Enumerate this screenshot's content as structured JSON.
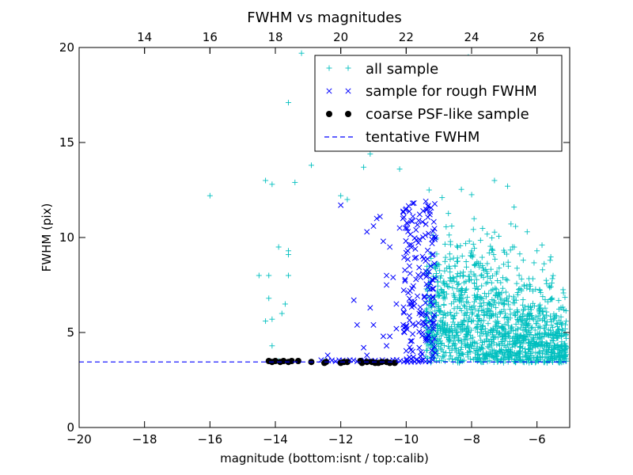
{
  "chart_data": {
    "type": "scatter",
    "title": "FWHM vs magnitudes",
    "xlabel": "magnitude (bottom:isnt / top:calib)",
    "ylabel": "FWHM (pix)",
    "xlim": [
      -20,
      -5
    ],
    "ylim": [
      0,
      20
    ],
    "x_ticks": [
      -20,
      -18,
      -16,
      -14,
      -12,
      -10,
      -8,
      -6
    ],
    "x_tick_labels": [
      "−20",
      "−18",
      "−16",
      "−14",
      "−12",
      "−10",
      "−8",
      "−6"
    ],
    "y_ticks": [
      0,
      5,
      10,
      15,
      20
    ],
    "y_tick_labels": [
      "0",
      "5",
      "10",
      "15",
      "20"
    ],
    "top_axis": {
      "ticks": [
        14,
        16,
        18,
        20,
        22,
        24,
        26
      ],
      "tick_labels": [
        "14",
        "16",
        "18",
        "20",
        "22",
        "24",
        "26"
      ],
      "offset": 32
    },
    "grid": false,
    "legend_position": "top-right",
    "series": [
      {
        "name": "all sample",
        "marker": "+",
        "color": "#00bfbf",
        "points": [
          [
            -16,
            12.2
          ],
          [
            -14.3,
            13
          ],
          [
            -14.1,
            12.8
          ],
          [
            -13.4,
            12.9
          ],
          [
            -12.9,
            13.8
          ],
          [
            -13.2,
            19.7
          ],
          [
            -13.6,
            17.1
          ],
          [
            -14.3,
            5.6
          ],
          [
            -14.5,
            8
          ],
          [
            -14.2,
            8
          ],
          [
            -14.2,
            6.8
          ],
          [
            -14.1,
            5.7
          ],
          [
            -13.9,
            9.5
          ],
          [
            -13.6,
            9.3
          ],
          [
            -13.6,
            9.1
          ],
          [
            -13.6,
            8.0
          ],
          [
            -13.7,
            6.5
          ],
          [
            -13.8,
            6.0
          ],
          [
            -14.1,
            4.3
          ],
          [
            -14.2,
            3.5
          ],
          [
            -13.9,
            3.5
          ],
          [
            -12.5,
            3.5
          ],
          [
            -12.0,
            12.2
          ],
          [
            -11.8,
            12.0
          ],
          [
            -11.5,
            15.0
          ],
          [
            -11.1,
            14.4
          ],
          [
            -11.3,
            13.7
          ],
          [
            -10.7,
            17.5
          ],
          [
            -10.4,
            16.5
          ],
          [
            -10.2,
            13.6
          ],
          [
            -9.4,
            16.3
          ],
          [
            -9.3,
            12.5
          ],
          [
            -9.1,
            18.0
          ],
          [
            -8.9,
            12.1
          ],
          [
            -8.6,
            15.7
          ],
          [
            -8.4,
            16.8
          ],
          [
            -8.1,
            19.5
          ],
          [
            -7.6,
            18.1
          ],
          [
            -7.3,
            13.0
          ],
          [
            -7.1,
            15.2
          ],
          [
            -6.9,
            12.7
          ],
          [
            -6.7,
            11.6
          ],
          [
            -6.3,
            10.3
          ],
          [
            -6.0,
            9.3
          ],
          [
            -5.6,
            8.8
          ],
          [
            -5.2,
            5.1
          ],
          [
            -5.1,
            4.2
          ],
          [
            -5.3,
            3.7
          ]
        ],
        "cloud": {
          "x_range": [
            -9.4,
            -5.1
          ],
          "peak_x": -7.9,
          "peak_fwhm": 5.5,
          "fwhm_floor": 3.4,
          "count": 1400
        }
      },
      {
        "name": "sample for rough FWHM",
        "marker": "x",
        "color": "#0000ff",
        "points": [
          [
            -12,
            11.7
          ],
          [
            -11.2,
            10.3
          ],
          [
            -11,
            10.6
          ],
          [
            -10.9,
            11.0
          ],
          [
            -10.8,
            11.1
          ],
          [
            -10.7,
            9.8
          ],
          [
            -10.6,
            7.5
          ],
          [
            -10.5,
            9.5
          ],
          [
            -10.6,
            8.0
          ],
          [
            -10.5,
            4.8
          ],
          [
            -10.4,
            7.9
          ],
          [
            -10.3,
            6.5
          ],
          [
            -10.2,
            10.5
          ],
          [
            -10.1,
            11.0
          ],
          [
            -10.0,
            11.5
          ],
          [
            -10.0,
            9.2
          ],
          [
            -9.9,
            8.5
          ],
          [
            -9.9,
            6.5
          ],
          [
            -9.8,
            11.8
          ],
          [
            -9.7,
            10.4
          ],
          [
            -9.7,
            7.8
          ],
          [
            -9.6,
            6.0
          ],
          [
            -9.5,
            5.0
          ],
          [
            -9.4,
            11.9
          ],
          [
            -9.4,
            10.7
          ],
          [
            -9.5,
            9.0
          ],
          [
            -9.3,
            8.2
          ],
          [
            -9.3,
            6.9
          ],
          [
            -9.2,
            5.5
          ],
          [
            -9.2,
            4.5
          ],
          [
            -11.6,
            6.7
          ],
          [
            -11.1,
            6.3
          ],
          [
            -11.0,
            5.4
          ],
          [
            -10.7,
            4.8
          ],
          [
            -10.6,
            4.3
          ],
          [
            -11.5,
            5.4
          ],
          [
            -10.3,
            5.2
          ],
          [
            -10.0,
            5.3
          ],
          [
            -9.8,
            4.0
          ],
          [
            -9.6,
            4.2
          ],
          [
            -11.3,
            4.2
          ],
          [
            -11.2,
            3.8
          ],
          [
            -9.9,
            3.7
          ],
          [
            -12.4,
            3.8
          ],
          [
            -9.1,
            10.0
          ],
          [
            -9.2,
            7.3
          ],
          [
            -9.4,
            4.7
          ],
          [
            -9.6,
            3.5
          ]
        ],
        "floor": {
          "x_range": [
            -12.6,
            -9.1
          ],
          "fwhm": 3.5
        }
      },
      {
        "name": "coarse PSF-like sample",
        "marker": "o",
        "color": "#000000",
        "points": [
          [
            -14.2,
            3.5
          ],
          [
            -14.1,
            3.45
          ],
          [
            -14.0,
            3.5
          ],
          [
            -13.85,
            3.45
          ],
          [
            -13.75,
            3.5
          ],
          [
            -13.6,
            3.45
          ],
          [
            -13.5,
            3.5
          ],
          [
            -13.3,
            3.5
          ],
          [
            -12.9,
            3.45
          ],
          [
            -12.5,
            3.4
          ],
          [
            -12.45,
            3.45
          ],
          [
            -12.0,
            3.4
          ],
          [
            -11.9,
            3.45
          ],
          [
            -11.8,
            3.45
          ],
          [
            -11.4,
            3.5
          ],
          [
            -11.35,
            3.4
          ],
          [
            -11.2,
            3.45
          ],
          [
            -11.05,
            3.45
          ],
          [
            -10.95,
            3.4
          ],
          [
            -10.85,
            3.4
          ],
          [
            -10.75,
            3.45
          ],
          [
            -10.6,
            3.45
          ],
          [
            -10.5,
            3.4
          ],
          [
            -10.35,
            3.4
          ]
        ]
      },
      {
        "name": "tentative FWHM",
        "marker": "dashed-line",
        "color": "#0000ff",
        "value": 3.45
      }
    ]
  }
}
